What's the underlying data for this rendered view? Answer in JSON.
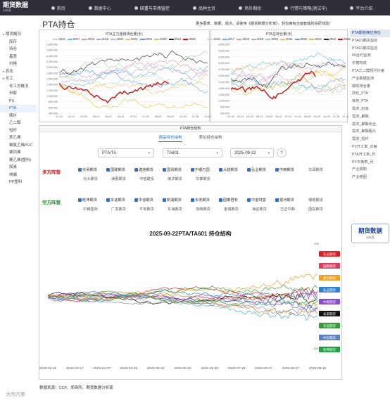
{
  "brand": {
    "name": "期货数据",
    "sub": "分析家"
  },
  "nav": [
    "首页",
    "数据中心",
    "研重与市场监控",
    "品种主页",
    "场外期权",
    "行情与策略(测试中)",
    "平台介绍"
  ],
  "left_sidebar": [
    {
      "label": "期货概况",
      "group": true
    },
    {
      "label": "库存"
    },
    {
      "label": "持仓"
    },
    {
      "label": "基差"
    },
    {
      "label": "价格"
    },
    {
      "label": "农化",
      "group": true
    },
    {
      "label": "化工",
      "group": true
    },
    {
      "label": "化工总概况"
    },
    {
      "label": "甲醇"
    },
    {
      "label": "PX"
    },
    {
      "label": "PTA",
      "active": true
    },
    {
      "label": "瓶片"
    },
    {
      "label": "乙二醇"
    },
    {
      "label": "短纤"
    },
    {
      "label": "苯乙烯"
    },
    {
      "label": "聚氯乙烯PVC"
    },
    {
      "label": "聚丙烯"
    },
    {
      "label": "聚乙烯(塑料)"
    },
    {
      "label": "尿素"
    },
    {
      "label": "纯碱"
    },
    {
      "label": "PP塑料"
    }
  ],
  "right_sidebar": [
    "PTA期货席位持仓",
    "PTA01期货监控",
    "PTA01期货监控",
    "09合约监测",
    "价格构成",
    "PTA之二醇短纤价差",
    "产业数据监测",
    "期现持仓量",
    "持仓_PTA",
    "库存_PTA",
    "需求_织造",
    "需求_聚酯",
    "需求_聚酯长丝",
    "需求_聚酯瓶片",
    "需求_短纤",
    "PX开工率_价差",
    "PTA开工率_月",
    "PX平衡表_月",
    "产业周期",
    "产业链图"
  ],
  "right_logo": {
    "title": "期货数据",
    "sub": "分析家"
  },
  "page_title": "PTA持仓",
  "promo": "更多图表、数据、观点，请使用《期货数据分析家》，轻松拥有全面智能的投研体验！",
  "chart_left": {
    "title": "PTA主力连续持仓量(手)",
    "yticks": [
      "2,800,000",
      "2,600,000",
      "2,400,000",
      "2,200,000",
      "2,000,000",
      "1,800,000",
      "1,600,000",
      "1,400,000",
      "1,200,000",
      "1,000,000",
      "800,000",
      "600,000",
      "400,000"
    ],
    "xticks": [
      "01-02",
      "02-01",
      "03-03",
      "04-01",
      "05-02",
      "06-01",
      "07-01",
      "07-31",
      "08-30",
      "09-29",
      "10-29",
      "11-28",
      "12-26"
    ]
  },
  "chart_right": {
    "title": "PTA总持仓量(手)",
    "yticks": [
      "3,900,000",
      "3,600,000",
      "3,300,000",
      "3,000,000",
      "2,700,000",
      "2,400,000",
      "2,100,000",
      "1,800,000",
      "1,500,000",
      "1,200,000",
      "900,000",
      "600,000"
    ],
    "xticks": [
      "01-02",
      "02-01",
      "03-03",
      "04-01",
      "05-02",
      "06-01",
      "07-01",
      "07-31",
      "08-30",
      "09-29",
      "10-29",
      "11-28",
      "12-25"
    ]
  },
  "years": [
    {
      "y": "2016",
      "color": "#b8e0b0"
    },
    {
      "y": "2017",
      "color": "#5fc0e6"
    },
    {
      "y": "2018",
      "color": "#f08fa8"
    },
    {
      "y": "2019",
      "color": "#b3a0e0"
    },
    {
      "y": "2020",
      "color": "#9ad49a"
    },
    {
      "y": "2021",
      "color": "#ffb86b"
    },
    {
      "y": "2022",
      "color": "#5aa0e0"
    },
    {
      "y": "2023",
      "color": "#e0c040"
    },
    {
      "y": "2024",
      "color": "#222222"
    },
    {
      "y": "2025",
      "color": "#cc1111"
    }
  ],
  "structure": {
    "header": "PTA持仓结构",
    "tabs": [
      "商品持仓结构",
      "席位持仓结构"
    ],
    "product": "PTA/TA",
    "contract": "TA601",
    "date": "2025-09-22",
    "long_label": "多方阵营",
    "short_label": "空方阵营",
    "long_brokers": [
      {
        "n": "东吴期货",
        "on": true
      },
      {
        "n": "国联期货",
        "on": true
      },
      {
        "n": "建信期货",
        "on": true
      },
      {
        "n": "国贸期货",
        "on": true
      },
      {
        "n": "中银万国",
        "on": true
      },
      {
        "n": "大越期货",
        "on": true
      },
      {
        "n": "弘业期货",
        "on": true
      },
      {
        "n": "中粮期货",
        "on": true
      },
      {
        "n": "华闻期货",
        "on": false
      },
      {
        "n": "光大期货",
        "on": false
      },
      {
        "n": "通惠期货",
        "on": false
      },
      {
        "n": "中信建投",
        "on": false
      },
      {
        "n": "南华期货",
        "on": false
      },
      {
        "n": "华泰期货",
        "on": false
      }
    ],
    "short_brokers": [
      {
        "n": "乾坤期货",
        "on": true
      },
      {
        "n": "东证期货",
        "on": true
      },
      {
        "n": "中信期货",
        "on": true
      },
      {
        "n": "新湖期货",
        "on": true
      },
      {
        "n": "永安期货",
        "on": true
      },
      {
        "n": "国泰君安",
        "on": true
      },
      {
        "n": "中金财富",
        "on": true
      },
      {
        "n": "银河期货",
        "on": true
      },
      {
        "n": "瑞银期货",
        "on": false
      },
      {
        "n": "中粮国际",
        "on": false
      },
      {
        "n": "广发期货",
        "on": false
      },
      {
        "n": "平安期货",
        "on": false
      },
      {
        "n": "东海期货",
        "on": false
      },
      {
        "n": "浙商期货",
        "on": false
      },
      {
        "n": "金瑞期货",
        "on": false
      },
      {
        "n": "海证期货",
        "on": false
      },
      {
        "n": "方正中期",
        "on": false
      },
      {
        "n": "国投期货",
        "on": false
      }
    ],
    "chart_title": "2025-09-22PTA/TA601 持仓结构",
    "y_top": "20K",
    "y_bottom": "-20K",
    "xticks": [
      "2025-02-25",
      "2025-03-17",
      "2025-04-07",
      "2025-04-25",
      "2025-05-20",
      "2025-06-10",
      "2025-06-30",
      "2025-07-18",
      "2025-08-07",
      "2025-08-27",
      "2025-09-16"
    ],
    "end_labels": [
      {
        "t": "东吴期货",
        "c": "#e02020"
      },
      {
        "t": "国联期货",
        "c": "#d84060"
      },
      {
        "t": "建信期货",
        "c": "#f0a020"
      },
      {
        "t": "弘业期货",
        "c": "#3080d0"
      },
      {
        "t": "中粮期货",
        "c": "#8a4cc8"
      },
      {
        "t": "永安期货",
        "c": "#111111"
      },
      {
        "t": "东证期货",
        "c": "#3a9a3a"
      },
      {
        "t": "中信期货",
        "c": "#6080c0"
      },
      {
        "t": "乾坤期货",
        "c": "#20a040"
      }
    ]
  },
  "source": "数据来源：CCF、郑商所、期货数据分析家",
  "watermark": "大宗内参"
}
